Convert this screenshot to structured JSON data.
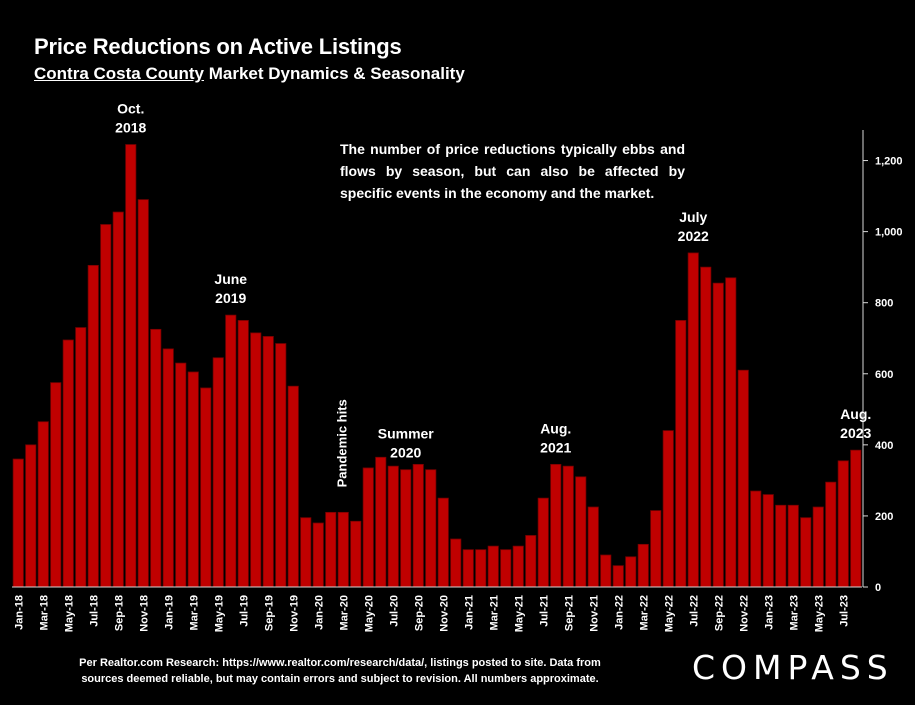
{
  "title": "Price Reductions on Active Listings",
  "subtitle_underlined": "Contra Costa County",
  "subtitle_rest": " Market Dynamics & Seasonality",
  "note": "The number of price reductions typically ebbs and flows by season, but can also be affected by specific events in the economy and the market.",
  "footer_line1": "Per Realtor.com Research:  https://www.realtor.com/research/data/, listings posted to site. Data from",
  "footer_line2": "sources deemed reliable, but may contain errors and subject to revision. All numbers approximate.",
  "logo": "COMPASS",
  "colors": {
    "bar": "#c00000",
    "bar_stroke": "#7a0000",
    "background": "#000000",
    "text": "#ffffff",
    "axis": "#d9d9d9"
  },
  "chart_data": {
    "type": "bar",
    "ylim": [
      0,
      1300
    ],
    "yticks": [
      0,
      200,
      400,
      600,
      800,
      1000,
      1200
    ],
    "ytick_labels": [
      "0",
      "200",
      "400",
      "600",
      "800",
      "1,000",
      "1,200"
    ],
    "y_axis_side": "right",
    "grid": false,
    "categories": [
      "Jan-18",
      "Feb-18",
      "Mar-18",
      "Apr-18",
      "May-18",
      "Jun-18",
      "Jul-18",
      "Aug-18",
      "Sep-18",
      "Oct-18",
      "Nov-18",
      "Dec-18",
      "Jan-19",
      "Feb-19",
      "Mar-19",
      "Apr-19",
      "May-19",
      "Jun-19",
      "Jul-19",
      "Aug-19",
      "Sep-19",
      "Oct-19",
      "Nov-19",
      "Dec-19",
      "Jan-20",
      "Feb-20",
      "Mar-20",
      "Apr-20",
      "May-20",
      "Jun-20",
      "Jul-20",
      "Aug-20",
      "Sep-20",
      "Oct-20",
      "Nov-20",
      "Dec-20",
      "Jan-21",
      "Feb-21",
      "Mar-21",
      "Apr-21",
      "May-21",
      "Jun-21",
      "Jul-21",
      "Aug-21",
      "Sep-21",
      "Oct-21",
      "Nov-21",
      "Dec-21",
      "Jan-22",
      "Feb-22",
      "Mar-22",
      "Apr-22",
      "May-22",
      "Jun-22",
      "Jul-22",
      "Aug-22",
      "Sep-22",
      "Oct-22",
      "Nov-22",
      "Dec-22",
      "Jan-23",
      "Feb-23",
      "Mar-23",
      "Apr-23",
      "May-23",
      "Jun-23",
      "Jul-23",
      "Aug-23"
    ],
    "xtick_labels": [
      "Jan-18",
      "",
      "Mar-18",
      "",
      "May-18",
      "",
      "Jul-18",
      "",
      "Sep-18",
      "",
      "Nov-18",
      "",
      "Jan-19",
      "",
      "Mar-19",
      "",
      "May-19",
      "",
      "Jul-19",
      "",
      "Sep-19",
      "",
      "Nov-19",
      "",
      "Jan-20",
      "",
      "Mar-20",
      "",
      "May-20",
      "",
      "Jul-20",
      "",
      "Sep-20",
      "",
      "Nov-20",
      "",
      "Jan-21",
      "",
      "Mar-21",
      "",
      "May-21",
      "",
      "Jul-21",
      "",
      "Sep-21",
      "",
      "Nov-21",
      "",
      "Jan-22",
      "",
      "Mar-22",
      "",
      "May-22",
      "",
      "Jul-22",
      "",
      "Sep-22",
      "",
      "Nov-22",
      "",
      "Jan-23",
      "",
      "Mar-23",
      "",
      "May-23",
      "",
      "Jul-23",
      ""
    ],
    "values": [
      360,
      400,
      465,
      575,
      695,
      730,
      905,
      1020,
      1055,
      1245,
      1090,
      725,
      670,
      630,
      605,
      560,
      645,
      765,
      750,
      715,
      705,
      685,
      565,
      195,
      180,
      210,
      210,
      185,
      335,
      365,
      340,
      330,
      345,
      330,
      250,
      135,
      105,
      105,
      115,
      105,
      115,
      145,
      250,
      345,
      340,
      310,
      225,
      90,
      60,
      85,
      120,
      215,
      440,
      750,
      940,
      900,
      855,
      870,
      610,
      270,
      260,
      230,
      230,
      195,
      225,
      295,
      355,
      385
    ],
    "annotations": [
      {
        "lines": [
          "Oct.",
          "2018"
        ],
        "index": 9
      },
      {
        "lines": [
          "June",
          "2019"
        ],
        "index": 17
      },
      {
        "lines": [
          "Pandemic hits"
        ],
        "index": 26,
        "rotated": true
      },
      {
        "lines": [
          "Summer",
          "2020"
        ],
        "index": 31
      },
      {
        "lines": [
          "Aug.",
          "2021"
        ],
        "index": 43
      },
      {
        "lines": [
          "July",
          "2022"
        ],
        "index": 54
      },
      {
        "lines": [
          "Aug.",
          "2023"
        ],
        "index": 67
      }
    ]
  }
}
